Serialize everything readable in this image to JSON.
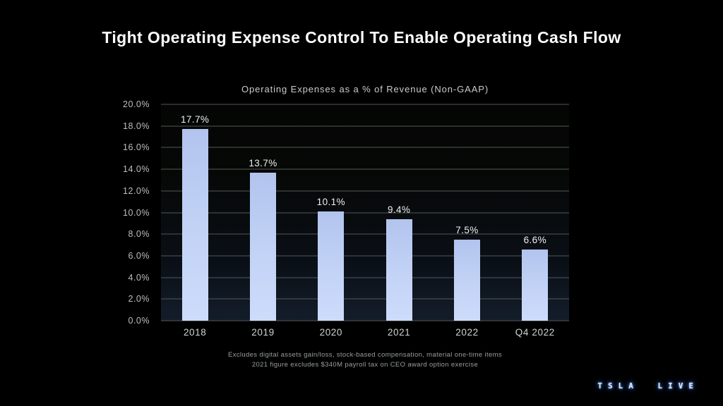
{
  "slide": {
    "title": "Tight Operating Expense Control To Enable Operating Cash Flow",
    "footnote_line1": "Excludes digital assets gain/loss, stock-based compensation, material one-time items",
    "footnote_line2": "2021 figure excludes $340M payroll tax on CEO award option exercise",
    "watermark": "TSLA LIVE"
  },
  "chart_data": {
    "type": "bar",
    "title": "Operating Expenses as a % of Revenue (Non-GAAP)",
    "categories": [
      "2018",
      "2019",
      "2020",
      "2021",
      "2022",
      "Q4 2022"
    ],
    "values": [
      17.7,
      13.7,
      10.1,
      9.4,
      7.5,
      6.6
    ],
    "value_labels": [
      "17.7%",
      "13.7%",
      "10.1%",
      "9.4%",
      "7.5%",
      "6.6%"
    ],
    "xlabel": "",
    "ylabel": "",
    "ylim": [
      0,
      20
    ],
    "ytick_step": 2,
    "ytick_labels": [
      "20.0%",
      "18.0%",
      "16.0%",
      "14.0%",
      "12.0%",
      "10.0%",
      "8.0%",
      "6.0%",
      "4.0%",
      "2.0%",
      "0.0%"
    ],
    "grid": true,
    "legend": false,
    "colors": {
      "background": "#000000",
      "plot_gradient_top": "#040504",
      "plot_gradient_bottom": "#131d2a",
      "bar": "#bccdf4",
      "gridline": "#53575a",
      "value_label": "#eef0f2",
      "axis_label": "#bcbfc1",
      "title": "#fdfdfd",
      "watermark_glow": "#3f7ae0"
    }
  }
}
